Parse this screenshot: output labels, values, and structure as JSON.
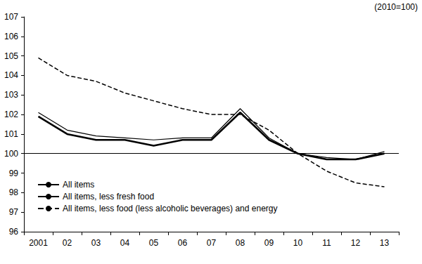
{
  "chart_data": {
    "type": "line",
    "annotations": [
      "(2010=100)"
    ],
    "categories": [
      "2001",
      "02",
      "03",
      "04",
      "05",
      "06",
      "07",
      "08",
      "09",
      "10",
      "11",
      "12",
      "13"
    ],
    "series": [
      {
        "name": "All items",
        "color": "#000000",
        "line_style": "solid",
        "values": [
          101.9,
          101.0,
          100.7,
          100.7,
          100.4,
          100.7,
          100.7,
          102.1,
          100.7,
          100.0,
          99.7,
          99.7,
          100.0
        ]
      },
      {
        "name": "All items, less fresh food",
        "color": "#000000",
        "line_style": "solid",
        "values": [
          102.1,
          101.2,
          100.9,
          100.8,
          100.7,
          100.8,
          100.8,
          102.3,
          100.8,
          100.0,
          99.8,
          99.7,
          100.1
        ]
      },
      {
        "name": "All items, less food (less alcoholic beverages) and energy",
        "color": "#000000",
        "line_style": "dashed",
        "values": [
          104.9,
          104.0,
          103.7,
          103.1,
          102.7,
          102.3,
          102.0,
          102.0,
          101.2,
          100.0,
          99.1,
          98.5,
          98.3
        ]
      }
    ],
    "ylim": [
      96,
      107
    ],
    "yticks": [
      96,
      97,
      98,
      99,
      100,
      101,
      102,
      103,
      104,
      105,
      106,
      107
    ],
    "baseline": 100,
    "grid": false,
    "legend": "lower left",
    "marker": "none"
  }
}
